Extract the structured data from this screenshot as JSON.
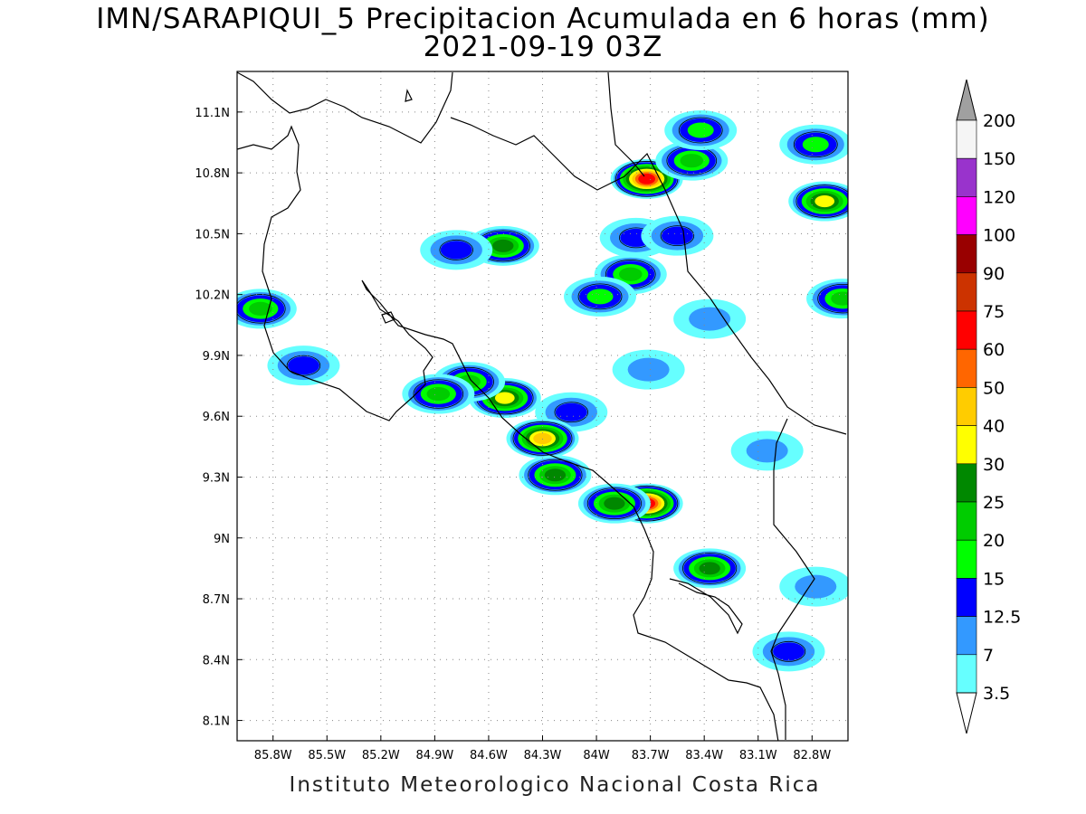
{
  "title": "IMN/SARAPIQUI_5 Precipitacion Acumulada en 6 horas (mm)",
  "subtitle": "2021-09-19 03Z",
  "footer": "Instituto Meteorologico Nacional Costa Rica",
  "map": {
    "lon_range": [
      -86.0,
      -82.6
    ],
    "lat_range": [
      8.0,
      11.3
    ],
    "grid": "dotted",
    "x_ticks": [
      {
        "lon": -85.8,
        "label": "85.8W"
      },
      {
        "lon": -85.5,
        "label": "85.5W"
      },
      {
        "lon": -85.2,
        "label": "85.2W"
      },
      {
        "lon": -84.9,
        "label": "84.9W"
      },
      {
        "lon": -84.6,
        "label": "84.6W"
      },
      {
        "lon": -84.3,
        "label": "84.3W"
      },
      {
        "lon": -84.0,
        "label": "84W"
      },
      {
        "lon": -83.7,
        "label": "83.7W"
      },
      {
        "lon": -83.4,
        "label": "83.4W"
      },
      {
        "lon": -83.1,
        "label": "83.1W"
      },
      {
        "lon": -82.8,
        "label": "82.8W"
      }
    ],
    "y_ticks": [
      {
        "lat": 11.1,
        "label": "11.1N"
      },
      {
        "lat": 10.8,
        "label": "10.8N"
      },
      {
        "lat": 10.5,
        "label": "10.5N"
      },
      {
        "lat": 10.2,
        "label": "10.2N"
      },
      {
        "lat": 9.9,
        "label": "9.9N"
      },
      {
        "lat": 9.6,
        "label": "9.6N"
      },
      {
        "lat": 9.3,
        "label": "9.3N"
      },
      {
        "lat": 9.0,
        "label": "9N"
      },
      {
        "lat": 8.7,
        "label": "8.7N"
      },
      {
        "lat": 8.4,
        "label": "8.4N"
      },
      {
        "lat": 8.1,
        "label": "8.1N"
      }
    ]
  },
  "colorbar": {
    "unit": "mm",
    "levels": [
      {
        "value": "3.5",
        "color": "#66ffff"
      },
      {
        "value": "7",
        "color": "#3399ff"
      },
      {
        "value": "12.5",
        "color": "#0000ff"
      },
      {
        "value": "15",
        "color": "#00ff00"
      },
      {
        "value": "20",
        "color": "#00cc00"
      },
      {
        "value": "25",
        "color": "#008800"
      },
      {
        "value": "30",
        "color": "#ffff00"
      },
      {
        "value": "40",
        "color": "#ffcc00"
      },
      {
        "value": "50",
        "color": "#ff6600"
      },
      {
        "value": "60",
        "color": "#ff0000"
      },
      {
        "value": "75",
        "color": "#cc3300"
      },
      {
        "value": "90",
        "color": "#990000"
      },
      {
        "value": "100",
        "color": "#ff00ff"
      },
      {
        "value": "120",
        "color": "#9933cc"
      },
      {
        "value": "150",
        "color": "#f5f5f5"
      },
      {
        "value": "200",
        "color": "#a0a0a0"
      }
    ]
  },
  "precip_cells": [
    {
      "lon": -83.72,
      "lat": 10.77,
      "peak_mm": 60
    },
    {
      "lon": -83.47,
      "lat": 10.86,
      "peak_mm": 20
    },
    {
      "lon": -83.42,
      "lat": 11.01,
      "peak_mm": 15
    },
    {
      "lon": -82.73,
      "lat": 10.66,
      "peak_mm": 30
    },
    {
      "lon": -82.78,
      "lat": 10.94,
      "peak_mm": 15
    },
    {
      "lon": -84.52,
      "lat": 10.44,
      "peak_mm": 25
    },
    {
      "lon": -84.78,
      "lat": 10.42,
      "peak_mm": 12.5
    },
    {
      "lon": -83.78,
      "lat": 10.48,
      "peak_mm": 12.5
    },
    {
      "lon": -83.55,
      "lat": 10.49,
      "peak_mm": 12.5
    },
    {
      "lon": -83.81,
      "lat": 10.3,
      "peak_mm": 20
    },
    {
      "lon": -83.98,
      "lat": 10.19,
      "peak_mm": 15
    },
    {
      "lon": -82.63,
      "lat": 10.18,
      "peak_mm": 20
    },
    {
      "lon": -83.37,
      "lat": 10.08,
      "peak_mm": 7
    },
    {
      "lon": -85.87,
      "lat": 10.13,
      "peak_mm": 20
    },
    {
      "lon": -85.63,
      "lat": 9.85,
      "peak_mm": 12.5
    },
    {
      "lon": -83.71,
      "lat": 9.83,
      "peak_mm": 7
    },
    {
      "lon": -84.51,
      "lat": 9.69,
      "peak_mm": 30
    },
    {
      "lon": -84.71,
      "lat": 9.77,
      "peak_mm": 20
    },
    {
      "lon": -84.88,
      "lat": 9.71,
      "peak_mm": 20
    },
    {
      "lon": -84.14,
      "lat": 9.62,
      "peak_mm": 12.5
    },
    {
      "lon": -84.3,
      "lat": 9.49,
      "peak_mm": 40
    },
    {
      "lon": -84.23,
      "lat": 9.31,
      "peak_mm": 25
    },
    {
      "lon": -83.72,
      "lat": 9.17,
      "peak_mm": 60
    },
    {
      "lon": -83.9,
      "lat": 9.17,
      "peak_mm": 25
    },
    {
      "lon": -83.37,
      "lat": 8.85,
      "peak_mm": 25
    },
    {
      "lon": -82.93,
      "lat": 8.44,
      "peak_mm": 12.5
    },
    {
      "lon": -82.78,
      "lat": 8.76,
      "peak_mm": 7
    },
    {
      "lon": -83.05,
      "lat": 9.43,
      "peak_mm": 7
    }
  ]
}
